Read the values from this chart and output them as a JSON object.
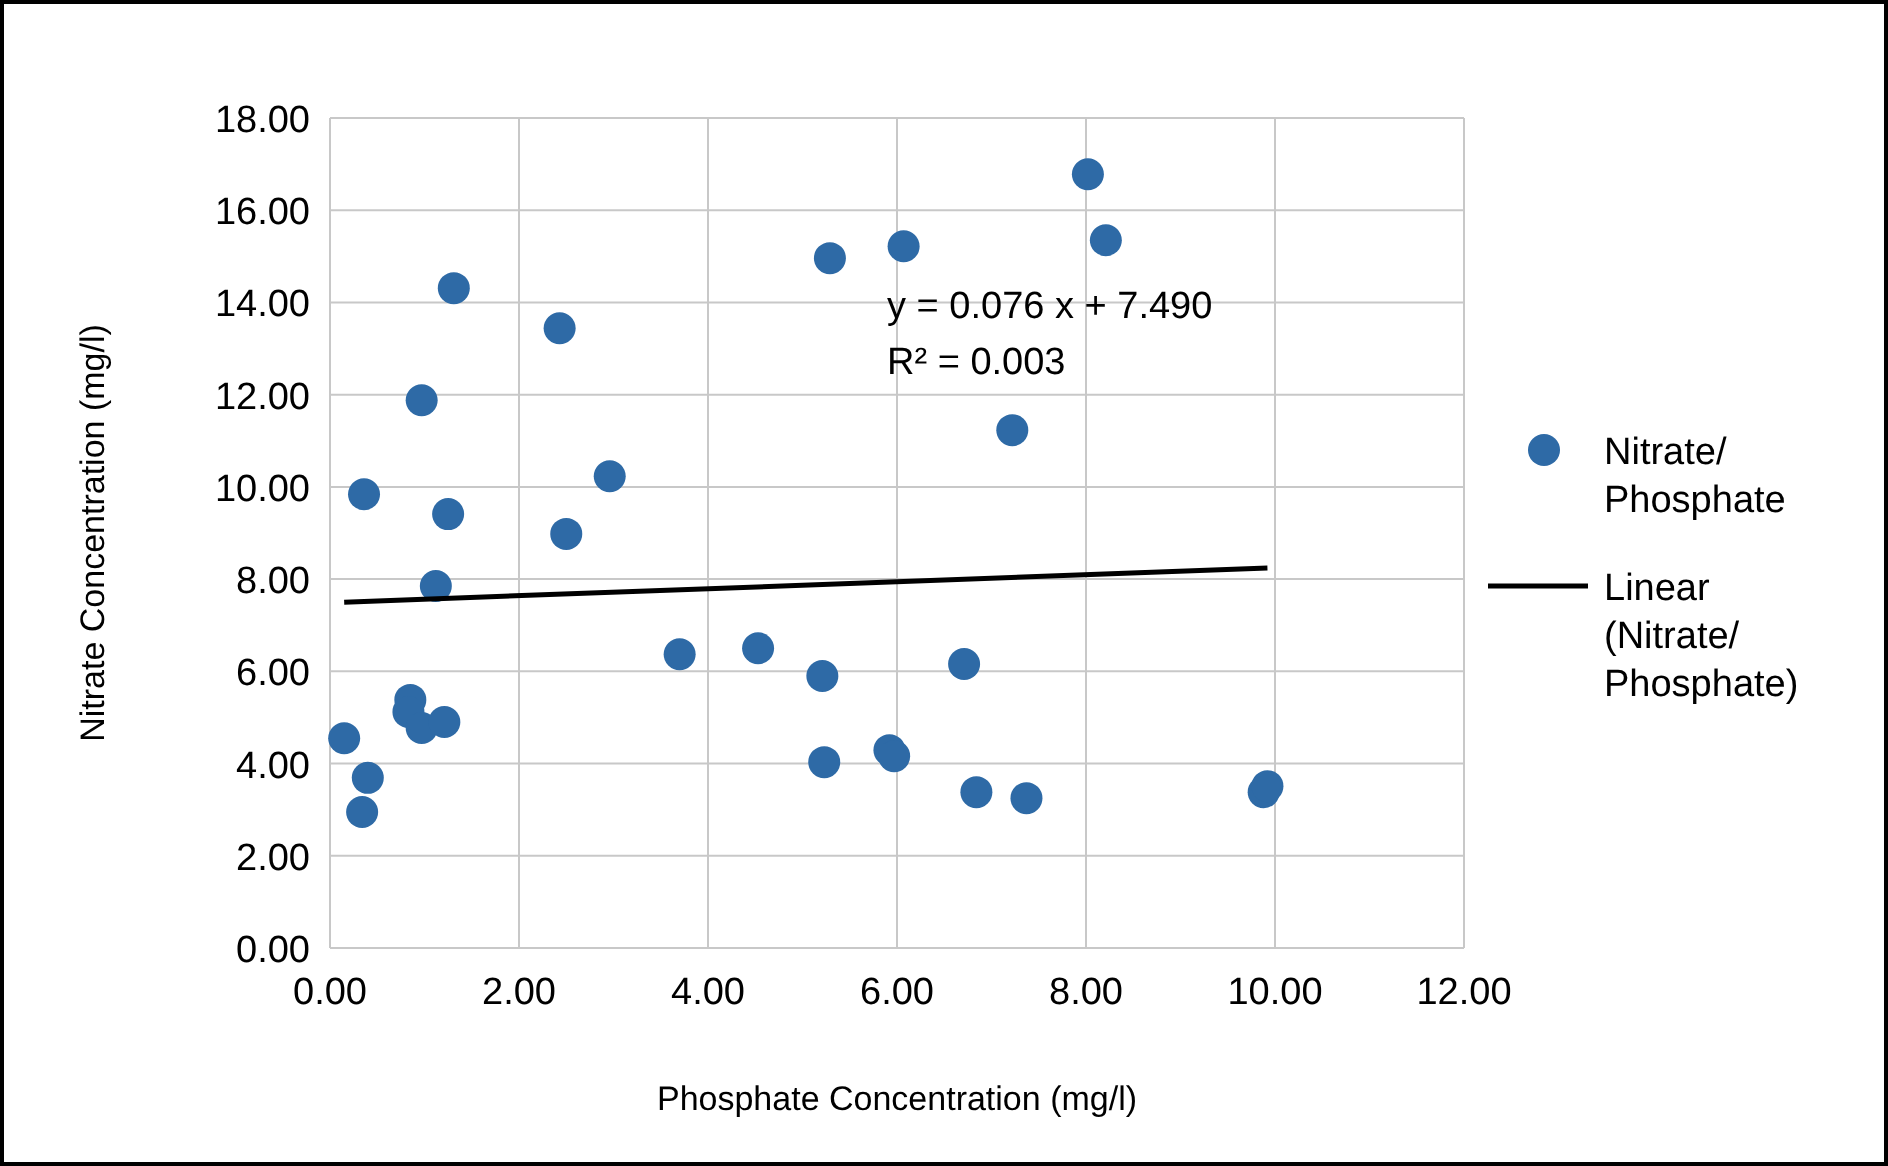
{
  "chart_data": {
    "type": "scatter",
    "xlabel": "Phosphate Concentration (mg/l)",
    "ylabel": "Nitrate Concentration (mg/l)",
    "xlim": [
      0,
      12
    ],
    "ylim": [
      0,
      18
    ],
    "xticks": [
      {
        "value": 0,
        "label": "0.00"
      },
      {
        "value": 2,
        "label": "2.00"
      },
      {
        "value": 4,
        "label": "4.00"
      },
      {
        "value": 6,
        "label": "6.00"
      },
      {
        "value": 8,
        "label": "8.00"
      },
      {
        "value": 10,
        "label": "10.00"
      },
      {
        "value": 12,
        "label": "12.00"
      }
    ],
    "yticks": [
      {
        "value": 0,
        "label": "0.00"
      },
      {
        "value": 2,
        "label": "2.00"
      },
      {
        "value": 4,
        "label": "4.00"
      },
      {
        "value": 6,
        "label": "6.00"
      },
      {
        "value": 8,
        "label": "8.00"
      },
      {
        "value": 10,
        "label": "10.00"
      },
      {
        "value": 12,
        "label": "12.00"
      },
      {
        "value": 14,
        "label": "14.00"
      },
      {
        "value": 16,
        "label": "16.00"
      },
      {
        "value": 18,
        "label": "18.00"
      }
    ],
    "grid": true,
    "legend": "right",
    "marker": "circle",
    "annotations": [
      "y = 0.076 x + 7.490",
      "R² = 0.003"
    ],
    "series": [
      {
        "name": "Nitrate/Phosphate",
        "color": "#2e6aa6",
        "x": [
          0.15,
          0.36,
          0.4,
          0.34,
          0.85,
          0.83,
          0.97,
          1.21,
          0.97,
          1.25,
          1.12,
          1.31,
          2.43,
          2.5,
          2.96,
          3.7,
          4.53,
          5.21,
          5.23,
          5.29,
          6.07,
          5.92,
          5.97,
          6.71,
          6.84,
          7.22,
          7.37,
          8.02,
          8.21,
          9.88,
          9.92
        ],
        "values": [
          4.55,
          9.84,
          3.69,
          2.95,
          5.38,
          5.12,
          4.77,
          4.9,
          11.88,
          9.41,
          7.85,
          14.31,
          13.44,
          8.98,
          10.23,
          6.37,
          6.5,
          5.9,
          4.03,
          14.96,
          15.22,
          4.29,
          4.16,
          6.16,
          3.38,
          11.23,
          3.25,
          16.78,
          15.35,
          3.38,
          3.51
        ]
      },
      {
        "name": "Linear (Nitrate/Phosphate)",
        "type": "line",
        "color": "#000000",
        "marker": "none",
        "line_style": "solid",
        "x": [
          0.15,
          9.92
        ],
        "values": [
          7.5,
          8.24
        ]
      }
    ]
  }
}
